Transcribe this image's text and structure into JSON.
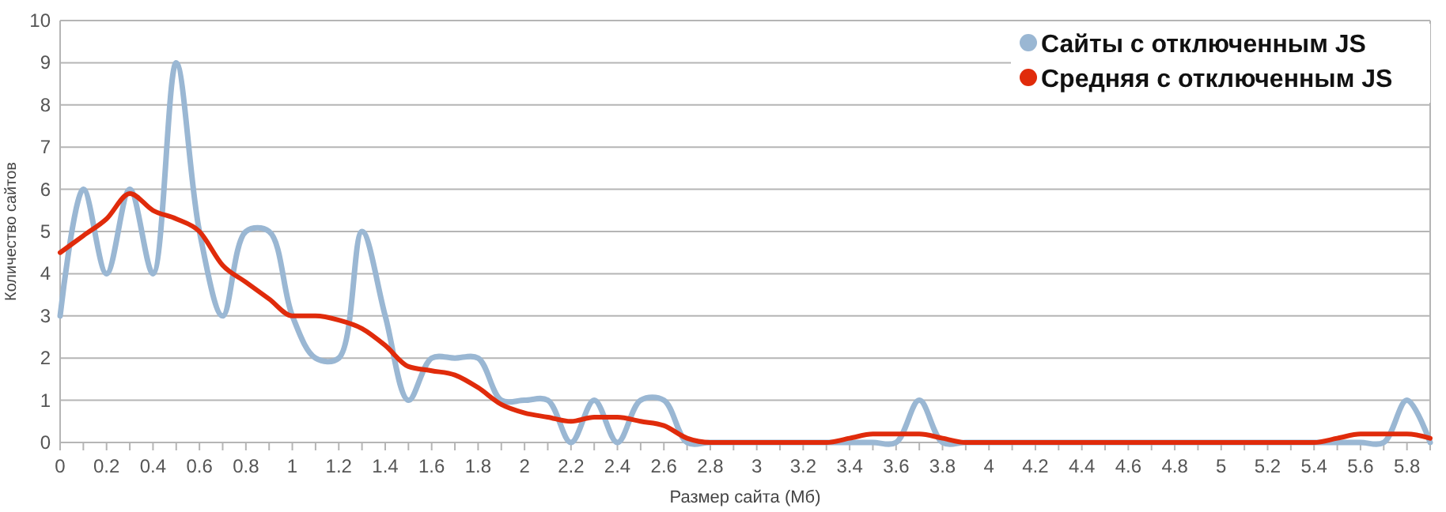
{
  "chart_data": {
    "type": "line",
    "xlabel": "Размер сайта (Мб)",
    "ylabel": "Количество сайтов",
    "x": [
      0,
      0.1,
      0.2,
      0.3,
      0.4,
      0.5,
      0.6,
      0.7,
      0.8,
      0.9,
      1,
      1.1,
      1.2,
      1.3,
      1.4,
      1.5,
      1.6,
      1.7,
      1.8,
      1.9,
      2,
      2.1,
      2.2,
      2.3,
      2.4,
      2.5,
      2.6,
      2.7,
      2.8,
      2.9,
      3,
      3.1,
      3.2,
      3.3,
      3.4,
      3.5,
      3.6,
      3.7,
      3.8,
      3.9,
      4,
      4.1,
      4.2,
      4.3,
      4.4,
      4.5,
      4.6,
      4.7,
      4.8,
      4.9,
      5,
      5.1,
      5.2,
      5.3,
      5.4,
      5.5,
      5.6,
      5.7,
      5.8,
      5.9
    ],
    "series": [
      {
        "name": "Сайты с отключенным JS",
        "color": "#9ab7d3",
        "values": [
          3,
          6,
          4,
          6,
          4,
          9,
          5,
          3,
          5,
          5,
          3,
          2,
          2,
          5,
          3,
          1,
          2,
          2,
          2,
          1,
          1,
          1,
          0,
          1,
          0,
          1,
          1,
          0,
          0,
          0,
          0,
          0,
          0,
          0,
          0,
          0,
          0,
          1,
          0,
          0,
          0,
          0,
          0,
          0,
          0,
          0,
          0,
          0,
          0,
          0,
          0,
          0,
          0,
          0,
          0,
          0,
          0,
          0,
          1,
          0
        ]
      },
      {
        "name": "Средняя с отключенным JS",
        "color": "#e02b0b",
        "values": [
          4.5,
          4.9,
          5.3,
          5.9,
          5.5,
          5.3,
          5.0,
          4.2,
          3.8,
          3.4,
          3.0,
          3.0,
          2.9,
          2.7,
          2.3,
          1.8,
          1.7,
          1.6,
          1.3,
          0.9,
          0.7,
          0.6,
          0.5,
          0.6,
          0.6,
          0.5,
          0.4,
          0.1,
          0,
          0,
          0,
          0,
          0,
          0,
          0.1,
          0.2,
          0.2,
          0.2,
          0.1,
          0,
          0,
          0,
          0,
          0,
          0,
          0,
          0,
          0,
          0,
          0,
          0,
          0,
          0,
          0,
          0,
          0.1,
          0.2,
          0.2,
          0.2,
          0.1
        ]
      }
    ],
    "xlim": [
      0,
      5.9
    ],
    "xticks": [
      0,
      0.2,
      0.4,
      0.6,
      0.8,
      1,
      1.2,
      1.4,
      1.6,
      1.8,
      2,
      2.2,
      2.4,
      2.6,
      2.8,
      3,
      3.2,
      3.4,
      3.6,
      3.8,
      4,
      4.2,
      4.4,
      4.6,
      4.8,
      5,
      5.2,
      5.4,
      5.6,
      5.8
    ],
    "ylim": [
      0,
      10
    ],
    "yticks": [
      0,
      1,
      2,
      3,
      4,
      5,
      6,
      7,
      8,
      9,
      10
    ],
    "grid": "y",
    "legend": "top right",
    "marker": "none",
    "line_style": "solid"
  }
}
